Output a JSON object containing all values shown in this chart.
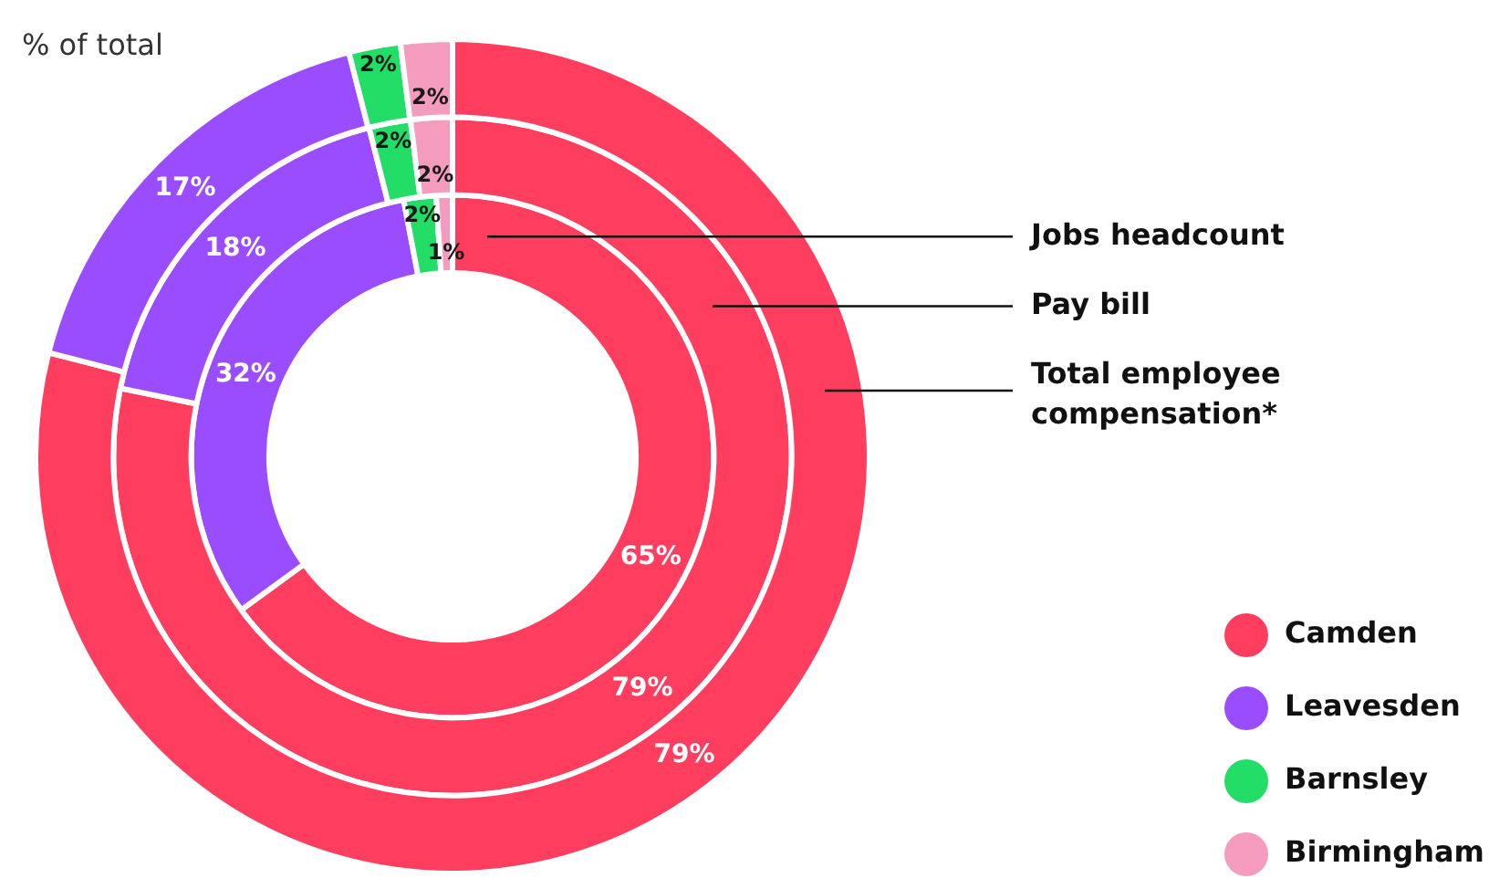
{
  "chart_data": {
    "type": "donut",
    "title": "% of total",
    "categories": [
      "Camden",
      "Leavesden",
      "Barnsley",
      "Birmingham"
    ],
    "colors": [
      "#ff3d5f",
      "#9a4cff",
      "#22dd66",
      "#f59bbd"
    ],
    "series": [
      {
        "name": "Jobs headcount",
        "values": [
          65,
          32,
          2,
          1
        ],
        "value_labels": [
          "65%",
          "32%",
          "2%",
          "1%"
        ]
      },
      {
        "name": "Pay bill",
        "values": [
          79,
          18,
          2,
          2
        ],
        "value_labels": [
          "79%",
          "18%",
          "2%",
          "2%"
        ]
      },
      {
        "name": "Total employee compensation*",
        "values": [
          79,
          17,
          2,
          2
        ],
        "value_labels": [
          "79%",
          "17%",
          "2%",
          "2%"
        ]
      }
    ],
    "legend": "bottom right"
  }
}
